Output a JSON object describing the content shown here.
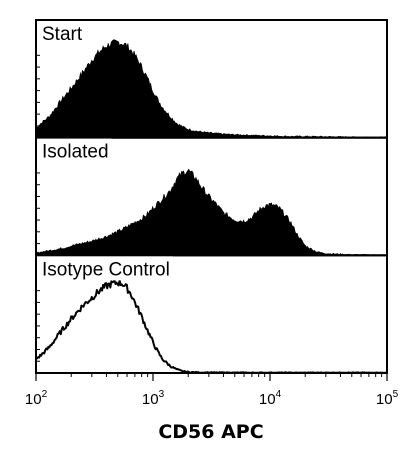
{
  "chart_data": {
    "type": "area",
    "title": "",
    "xlabel": "CD56 APC",
    "ylabel": "",
    "x_scale": "log",
    "xlim": [
      100,
      100000
    ],
    "x_ticks": [
      {
        "base": "10",
        "exp": "2"
      },
      {
        "base": "10",
        "exp": "3"
      },
      {
        "base": "10",
        "exp": "4"
      },
      {
        "base": "10",
        "exp": "5"
      }
    ],
    "grid": false,
    "panels": [
      {
        "label": "Start",
        "style": "filled",
        "color": "#000000",
        "x": [
          100,
          110,
          130,
          160,
          200,
          250,
          300,
          350,
          400,
          450,
          500,
          550,
          600,
          650,
          700,
          800,
          900,
          1000,
          1100,
          1200,
          1400,
          1600,
          1800,
          2000,
          2500,
          3000,
          4000,
          5000,
          7000,
          10000,
          15000,
          20000,
          30000,
          50000,
          100000
        ],
        "values": [
          0.08,
          0.12,
          0.18,
          0.3,
          0.42,
          0.55,
          0.66,
          0.73,
          0.78,
          0.8,
          0.81,
          0.8,
          0.78,
          0.74,
          0.7,
          0.6,
          0.5,
          0.4,
          0.32,
          0.26,
          0.18,
          0.12,
          0.09,
          0.07,
          0.05,
          0.04,
          0.03,
          0.025,
          0.02,
          0.015,
          0.01,
          0.01,
          0.008,
          0.005,
          0.003
        ]
      },
      {
        "label": "Isolated",
        "style": "filled",
        "color": "#000000",
        "x": [
          100,
          130,
          170,
          200,
          300,
          400,
          500,
          600,
          700,
          800,
          900,
          1000,
          1200,
          1400,
          1600,
          1800,
          2000,
          2300,
          2600,
          3000,
          3500,
          4000,
          5000,
          6000,
          7000,
          8000,
          9000,
          10000,
          11000,
          12000,
          13000,
          15000,
          17000,
          20000,
          25000,
          30000,
          50000,
          100000
        ],
        "values": [
          0.02,
          0.04,
          0.06,
          0.08,
          0.12,
          0.16,
          0.2,
          0.24,
          0.28,
          0.31,
          0.35,
          0.4,
          0.48,
          0.55,
          0.65,
          0.7,
          0.72,
          0.66,
          0.58,
          0.5,
          0.43,
          0.36,
          0.3,
          0.29,
          0.32,
          0.38,
          0.42,
          0.43,
          0.42,
          0.4,
          0.36,
          0.28,
          0.18,
          0.08,
          0.03,
          0.015,
          0.005,
          0.002
        ]
      },
      {
        "label": "Isotype Control",
        "style": "outline",
        "color": "#000000",
        "x": [
          100,
          110,
          130,
          160,
          200,
          250,
          300,
          350,
          400,
          450,
          500,
          550,
          600,
          650,
          700,
          800,
          900,
          1000,
          1100,
          1200,
          1400,
          1600,
          1800,
          2000,
          2500,
          3000,
          5000,
          10000,
          100000
        ],
        "values": [
          0.12,
          0.15,
          0.22,
          0.34,
          0.46,
          0.57,
          0.64,
          0.7,
          0.74,
          0.76,
          0.77,
          0.76,
          0.72,
          0.67,
          0.6,
          0.48,
          0.36,
          0.26,
          0.18,
          0.12,
          0.06,
          0.03,
          0.015,
          0.008,
          0.004,
          0.003,
          0.002,
          0.001,
          0.001
        ]
      }
    ]
  }
}
